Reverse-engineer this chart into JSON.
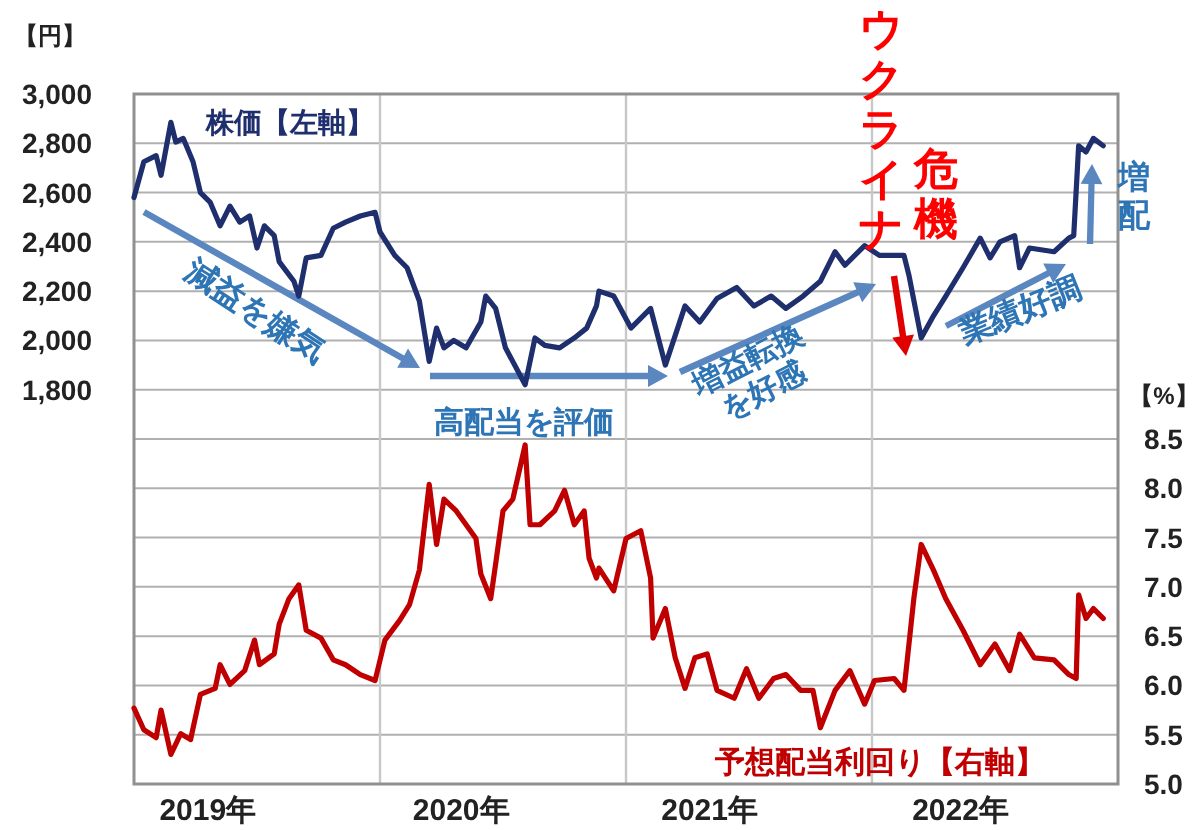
{
  "chart_data": {
    "type": "line",
    "ylabel": "【円】",
    "y2label": "【%】",
    "xlim": [
      2019,
      2023
    ],
    "xticks": [
      {
        "value": 2019.3,
        "label": "2019年"
      },
      {
        "value": 2020.33,
        "label": "2020年"
      },
      {
        "value": 2021.34,
        "label": "2021年"
      },
      {
        "value": 2022.36,
        "label": "2022年"
      }
    ],
    "ylim": [
      200,
      3000
    ],
    "yticks": [
      {
        "value": 1800,
        "label": "1,800"
      },
      {
        "value": 2000,
        "label": "2,000"
      },
      {
        "value": 2200,
        "label": "2,200"
      },
      {
        "value": 2400,
        "label": "2,400"
      },
      {
        "value": 2600,
        "label": "2,600"
      },
      {
        "value": 2800,
        "label": "2,800"
      },
      {
        "value": 3000,
        "label": "3,000"
      }
    ],
    "y2lim": [
      5,
      12
    ],
    "y2ticks": [
      {
        "value": 5,
        "label": "5.0"
      },
      {
        "value": 5.5,
        "label": "5.5"
      },
      {
        "value": 6,
        "label": "6.0"
      },
      {
        "value": 6.5,
        "label": "6.5"
      },
      {
        "value": 7,
        "label": "7.0"
      },
      {
        "value": 7.5,
        "label": "7.5"
      },
      {
        "value": 8,
        "label": "8.0"
      },
      {
        "value": 8.5,
        "label": "8.5"
      }
    ],
    "grid": "y",
    "ref_lines": [
      {
        "axis": "x",
        "value": 2020,
        "label": null,
        "color": "#c8c8c8"
      },
      {
        "axis": "x",
        "value": 2021,
        "label": null,
        "color": "#c8c8c8"
      },
      {
        "axis": "x",
        "value": 2022,
        "label": null,
        "color": "#c8c8c8"
      }
    ],
    "series": [
      {
        "name": "株価【左軸】",
        "color": "#1f2f6e",
        "axis": "y",
        "x": [
          2019,
          2019.04,
          2019.09,
          2019.11,
          2019.15,
          2019.17,
          2019.2,
          2019.24,
          2019.27,
          2019.31,
          2019.35,
          2019.39,
          2019.43,
          2019.47,
          2019.5,
          2019.53,
          2019.57,
          2019.59,
          2019.65,
          2019.67,
          2019.7,
          2019.76,
          2019.81,
          2019.86,
          2019.92,
          2019.98,
          2020,
          2020.06,
          2020.11,
          2020.16,
          2020.2,
          2020.23,
          2020.26,
          2020.3,
          2020.35,
          2020.41,
          2020.43,
          2020.47,
          2020.51,
          2020.59,
          2020.63,
          2020.67,
          2020.73,
          2020.79,
          2020.84,
          2020.88,
          2020.89,
          2020.95,
          2021.02,
          2021.1,
          2021.16,
          2021.24,
          2021.3,
          2021.37,
          2021.45,
          2021.52,
          2021.59,
          2021.65,
          2021.72,
          2021.79,
          2021.85,
          2021.89,
          2021.97,
          2022.03,
          2022.13,
          2022.15,
          2022.2,
          2022.25,
          2022.3,
          2022.37,
          2022.44,
          2022.48,
          2022.52,
          2022.58,
          2022.6,
          2022.64,
          2022.74,
          2022.8,
          2022.82,
          2022.84,
          2022.87,
          2022.9,
          2022.94
        ],
        "values": [
          2580,
          2725,
          2750,
          2670,
          2885,
          2805,
          2820,
          2725,
          2600,
          2560,
          2465,
          2545,
          2480,
          2505,
          2375,
          2465,
          2425,
          2320,
          2240,
          2180,
          2335,
          2345,
          2455,
          2480,
          2505,
          2520,
          2440,
          2345,
          2295,
          2160,
          1915,
          2050,
          1970,
          2000,
          1970,
          2075,
          2180,
          2130,
          1970,
          1820,
          2010,
          1980,
          1970,
          2010,
          2050,
          2140,
          2200,
          2180,
          2050,
          2130,
          1900,
          2140,
          2075,
          2170,
          2215,
          2140,
          2180,
          2130,
          2180,
          2240,
          2360,
          2305,
          2385,
          2345,
          2345,
          2265,
          2010,
          2100,
          2180,
          2295,
          2415,
          2335,
          2400,
          2425,
          2295,
          2375,
          2360,
          2415,
          2425,
          2790,
          2765,
          2820,
          2790
        ]
      },
      {
        "name": "予想配当利回り【右軸】",
        "color": "#c00000",
        "axis": "y2",
        "x": [
          2019,
          2019.04,
          2019.09,
          2019.11,
          2019.15,
          2019.19,
          2019.23,
          2019.27,
          2019.33,
          2019.35,
          2019.39,
          2019.45,
          2019.49,
          2019.51,
          2019.57,
          2019.59,
          2019.63,
          2019.67,
          2019.7,
          2019.76,
          2019.81,
          2019.86,
          2019.92,
          2019.98,
          2020.02,
          2020.08,
          2020.12,
          2020.16,
          2020.2,
          2020.23,
          2020.26,
          2020.31,
          2020.35,
          2020.39,
          2020.41,
          2020.45,
          2020.47,
          2020.5,
          2020.54,
          2020.59,
          2020.61,
          2020.65,
          2020.71,
          2020.75,
          2020.79,
          2020.83,
          2020.85,
          2020.88,
          2020.89,
          2020.95,
          2021,
          2021.06,
          2021.1,
          2021.11,
          2021.16,
          2021.2,
          2021.24,
          2021.28,
          2021.33,
          2021.37,
          2021.44,
          2021.49,
          2021.54,
          2021.6,
          2021.65,
          2021.71,
          2021.76,
          2021.79,
          2021.85,
          2021.91,
          2021.97,
          2022.01,
          2022.09,
          2022.13,
          2022.17,
          2022.2,
          2022.25,
          2022.3,
          2022.37,
          2022.44,
          2022.5,
          2022.56,
          2022.6,
          2022.66,
          2022.74,
          2022.8,
          2022.83,
          2022.84,
          2022.87,
          2022.9,
          2022.94
        ],
        "values": [
          5.77,
          5.55,
          5.47,
          5.75,
          5.3,
          5.51,
          5.45,
          5.91,
          5.97,
          6.21,
          6.01,
          6.15,
          6.46,
          6.21,
          6.32,
          6.62,
          6.88,
          7.02,
          6.56,
          6.48,
          6.26,
          6.21,
          6.11,
          6.05,
          6.46,
          6.66,
          6.82,
          7.17,
          8.04,
          7.43,
          7.89,
          7.77,
          7.63,
          7.49,
          7.13,
          6.88,
          7.23,
          7.77,
          7.89,
          8.44,
          7.63,
          7.63,
          7.77,
          7.98,
          7.63,
          7.77,
          7.29,
          7.09,
          7.19,
          6.96,
          7.49,
          7.57,
          7.09,
          6.48,
          6.78,
          6.28,
          5.97,
          6.28,
          6.32,
          5.95,
          5.87,
          6.17,
          5.87,
          6.07,
          6.11,
          5.95,
          5.95,
          5.57,
          5.95,
          6.15,
          5.81,
          6.05,
          6.07,
          5.95,
          6.88,
          7.43,
          7.17,
          6.88,
          6.56,
          6.21,
          6.42,
          6.15,
          6.52,
          6.28,
          6.26,
          6.11,
          6.07,
          6.92,
          6.68,
          6.78,
          6.68
        ]
      }
    ],
    "annotations": [
      "減益を嫌気",
      "高配当を評価",
      "増益転換\nを好感",
      "ウクライナ危機",
      "業績好調",
      "増配"
    ]
  }
}
